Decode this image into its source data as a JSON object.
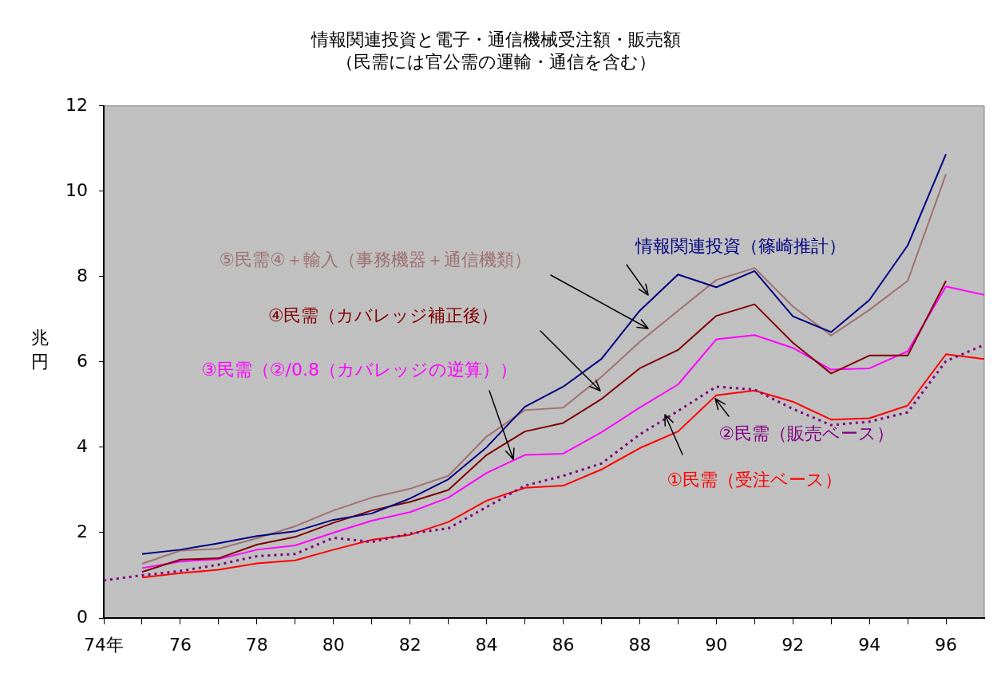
{
  "chart_data": {
    "type": "line",
    "title": "情報関連投資と電子・通信機械受注額・販売額",
    "subtitle": "（民需には官公需の運輸・通信を含む）",
    "ylabel": "兆円",
    "x": [
      75,
      76,
      77,
      78,
      79,
      80,
      81,
      82,
      83,
      84,
      85,
      86,
      87,
      88,
      89,
      90,
      91,
      92,
      93,
      94,
      95,
      96,
      97
    ],
    "xlim": [
      74,
      97
    ],
    "xticks": [
      {
        "value": 74,
        "label": "74年"
      },
      {
        "value": 75,
        "label": null
      },
      76,
      {
        "value": 77,
        "label": null
      },
      78,
      {
        "value": 79,
        "label": null
      },
      80,
      {
        "value": 81,
        "label": null
      },
      82,
      {
        "value": 83,
        "label": null
      },
      84,
      {
        "value": 85,
        "label": null
      },
      86,
      {
        "value": 87,
        "label": null
      },
      88,
      {
        "value": 89,
        "label": null
      },
      90,
      {
        "value": 91,
        "label": null
      },
      92,
      {
        "value": 93,
        "label": null
      },
      94,
      {
        "value": 95,
        "label": null
      },
      96
    ],
    "ylim": [
      0,
      12
    ],
    "yticks": [
      0,
      2,
      4,
      6,
      8,
      10,
      12
    ],
    "grid": false,
    "legend": false,
    "marker": "none",
    "series": [
      {
        "name": "情報関連投資（篠崎推計）",
        "color": "#000080",
        "values": [
          1.5,
          1.6,
          1.75,
          1.92,
          2.03,
          2.3,
          2.45,
          2.8,
          3.25,
          4.0,
          4.95,
          5.42,
          6.07,
          7.2,
          8.05,
          7.75,
          8.13,
          7.07,
          6.7,
          7.45,
          8.73,
          10.87,
          null
        ]
      },
      {
        "name": "⑤民需④＋輸入（事務機器＋通信機類）",
        "color": "#a07070",
        "values": [
          1.27,
          1.58,
          1.62,
          1.87,
          2.15,
          2.52,
          2.82,
          3.03,
          3.33,
          4.25,
          4.87,
          4.93,
          5.65,
          6.47,
          7.2,
          7.92,
          8.2,
          7.3,
          6.62,
          7.22,
          7.9,
          10.4,
          null
        ]
      },
      {
        "name": "④民需（カバレッジ補正後）",
        "color": "#800000",
        "values": [
          1.08,
          1.37,
          1.4,
          1.72,
          1.9,
          2.23,
          2.52,
          2.72,
          3.0,
          3.82,
          4.37,
          4.57,
          5.13,
          5.85,
          6.28,
          7.08,
          7.35,
          6.45,
          5.73,
          6.15,
          6.15,
          7.9,
          null
        ]
      },
      {
        "name": "③民需（②/0.8（カバレッジの逆算））",
        "color": "#ff00ff",
        "values": [
          1.17,
          1.32,
          1.38,
          1.6,
          1.7,
          2.0,
          2.28,
          2.48,
          2.82,
          3.4,
          3.82,
          3.85,
          4.35,
          4.93,
          5.47,
          6.53,
          6.63,
          6.33,
          5.82,
          5.85,
          6.25,
          7.77,
          7.57
        ]
      },
      {
        "name": "②民需（販売ベース）",
        "color": "#800080",
        "line_style": "dotted",
        "x": [
          74,
          75,
          76,
          77,
          78,
          79,
          80,
          81,
          82,
          83,
          84,
          85,
          86,
          87,
          88,
          89,
          90,
          91,
          92,
          93,
          94,
          95,
          96,
          97
        ],
        "values": [
          0.88,
          1.0,
          1.1,
          1.25,
          1.45,
          1.5,
          1.88,
          1.78,
          1.98,
          2.1,
          2.6,
          3.1,
          3.33,
          3.62,
          4.3,
          4.85,
          5.42,
          5.35,
          4.9,
          4.52,
          4.6,
          4.82,
          6.02,
          6.4
        ]
      },
      {
        "name": "①民需（受注ベース）",
        "color": "#ff0000",
        "values": [
          0.95,
          1.05,
          1.13,
          1.28,
          1.35,
          1.6,
          1.83,
          1.95,
          2.25,
          2.75,
          3.05,
          3.1,
          3.48,
          3.98,
          4.37,
          5.22,
          5.33,
          5.07,
          4.65,
          4.68,
          4.98,
          6.18,
          6.07
        ]
      }
    ]
  }
}
